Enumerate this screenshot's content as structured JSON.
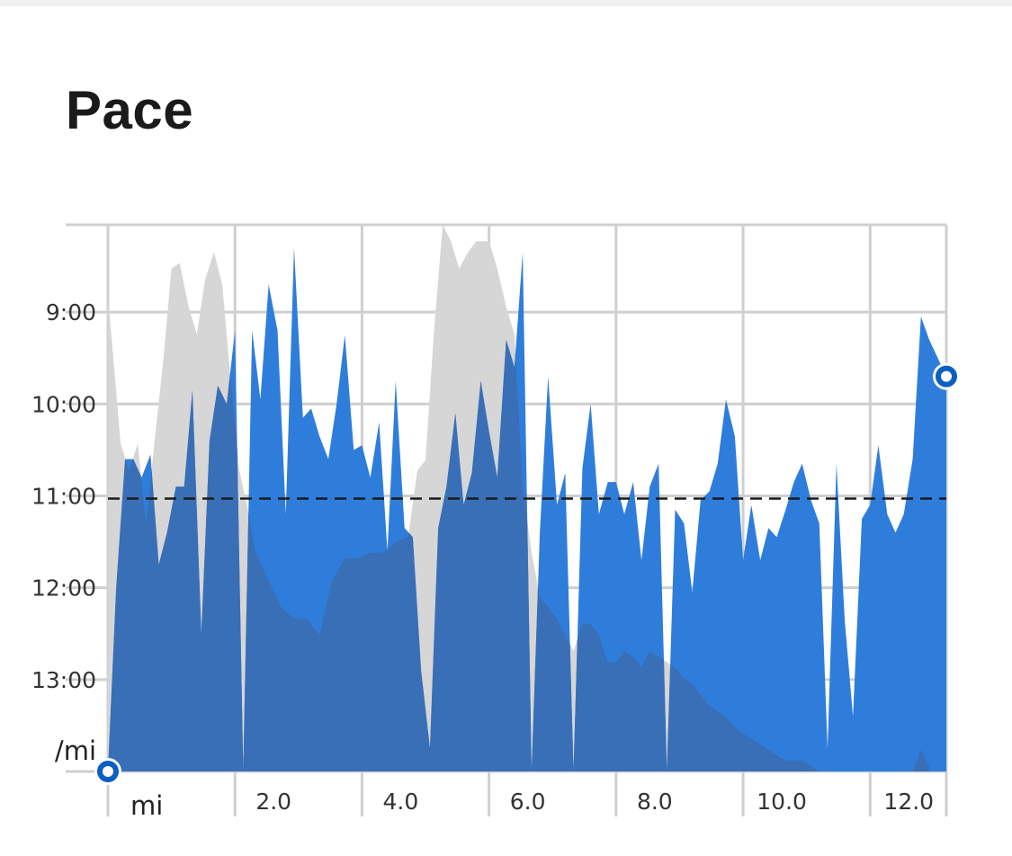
{
  "page": {
    "title": "Pace"
  },
  "colors": {
    "pace_fill": "#2f7ddb",
    "elevation_fill": "#d6d6d6",
    "overlap_tint": "#3a6fb5",
    "grid": "#cfcfcf",
    "average_line": "#1a1a1a",
    "marker_ring": "#0a5fc4"
  },
  "chart_data": {
    "type": "area",
    "title": "Pace",
    "xlabel": "mi",
    "ylabel": "/mi",
    "x_ticks": [
      2.0,
      4.0,
      6.0,
      8.0,
      10.0,
      12.0
    ],
    "x_tick_labels": [
      "2.0",
      "4.0",
      "6.0",
      "8.0",
      "10.0",
      "12.0"
    ],
    "y_ticks": [
      9,
      10,
      11,
      12,
      13
    ],
    "y_tick_labels": [
      "9:00",
      "10:00",
      "11:00",
      "12:00",
      "13:00"
    ],
    "y_axis_unit_label": "/mi",
    "x_axis_unit_label": "mi",
    "xlim": [
      0,
      13.2
    ],
    "ylim_minutes_per_mile": [
      8.05,
      14.0
    ],
    "y_inverted": true,
    "grid": true,
    "average_pace_minutes": 11.03,
    "series": [
      {
        "values_pace_minutes": [
          [
            0.0,
            14.0
          ],
          [
            0.13,
            12.0
          ],
          [
            0.27,
            10.6
          ],
          [
            0.4,
            10.6
          ],
          [
            0.53,
            10.8
          ],
          [
            0.67,
            10.55
          ],
          [
            0.8,
            11.75
          ],
          [
            0.93,
            11.4
          ],
          [
            1.07,
            10.9
          ],
          [
            1.2,
            10.9
          ],
          [
            1.33,
            9.85
          ],
          [
            1.47,
            12.5
          ],
          [
            1.6,
            10.4
          ],
          [
            1.73,
            9.8
          ],
          [
            1.87,
            10.0
          ],
          [
            2.0,
            9.2
          ],
          [
            2.13,
            14.0
          ],
          [
            2.27,
            9.2
          ],
          [
            2.4,
            9.95
          ],
          [
            2.53,
            8.7
          ],
          [
            2.67,
            9.2
          ],
          [
            2.8,
            11.2
          ],
          [
            2.93,
            8.3
          ],
          [
            3.07,
            10.15
          ],
          [
            3.2,
            10.05
          ],
          [
            3.33,
            10.35
          ],
          [
            3.47,
            10.6
          ],
          [
            3.6,
            10.0
          ],
          [
            3.73,
            9.25
          ],
          [
            3.87,
            10.5
          ],
          [
            4.0,
            10.45
          ],
          [
            4.13,
            10.8
          ],
          [
            4.27,
            10.2
          ],
          [
            4.4,
            11.6
          ],
          [
            4.53,
            9.75
          ],
          [
            4.67,
            11.35
          ],
          [
            4.8,
            11.45
          ],
          [
            4.93,
            12.9
          ],
          [
            5.07,
            13.75
          ],
          [
            5.2,
            11.35
          ],
          [
            5.33,
            10.9
          ],
          [
            5.47,
            10.1
          ],
          [
            5.6,
            11.1
          ],
          [
            5.73,
            10.75
          ],
          [
            5.87,
            9.75
          ],
          [
            6.0,
            10.3
          ],
          [
            6.13,
            10.8
          ],
          [
            6.27,
            9.3
          ],
          [
            6.4,
            9.6
          ],
          [
            6.53,
            8.35
          ],
          [
            6.67,
            14.0
          ],
          [
            6.8,
            11.4
          ],
          [
            6.93,
            9.7
          ],
          [
            7.07,
            11.1
          ],
          [
            7.2,
            10.75
          ],
          [
            7.33,
            14.0
          ],
          [
            7.47,
            10.7
          ],
          [
            7.6,
            10.0
          ],
          [
            7.73,
            11.2
          ],
          [
            7.87,
            10.85
          ],
          [
            8.0,
            10.85
          ],
          [
            8.13,
            11.2
          ],
          [
            8.27,
            10.85
          ],
          [
            8.4,
            11.7
          ],
          [
            8.53,
            10.9
          ],
          [
            8.67,
            10.65
          ],
          [
            8.8,
            14.0
          ],
          [
            8.93,
            11.15
          ],
          [
            9.07,
            11.3
          ],
          [
            9.2,
            12.05
          ],
          [
            9.33,
            11.05
          ],
          [
            9.47,
            10.95
          ],
          [
            9.6,
            10.65
          ],
          [
            9.73,
            9.95
          ],
          [
            9.87,
            10.35
          ],
          [
            10.0,
            11.7
          ],
          [
            10.13,
            11.1
          ],
          [
            10.27,
            11.7
          ],
          [
            10.4,
            11.35
          ],
          [
            10.53,
            11.45
          ],
          [
            10.67,
            11.15
          ],
          [
            10.8,
            10.85
          ],
          [
            10.93,
            10.65
          ],
          [
            11.07,
            11.05
          ],
          [
            11.2,
            11.3
          ],
          [
            11.33,
            13.75
          ],
          [
            11.47,
            10.65
          ],
          [
            11.6,
            12.35
          ],
          [
            11.73,
            13.4
          ],
          [
            11.87,
            11.25
          ],
          [
            12.0,
            11.1
          ],
          [
            12.13,
            10.45
          ],
          [
            12.27,
            11.2
          ],
          [
            12.4,
            11.4
          ],
          [
            12.53,
            11.2
          ],
          [
            12.67,
            10.6
          ],
          [
            12.8,
            9.05
          ],
          [
            12.93,
            9.3
          ]
        ]
      },
      {
        "values_relative_0_to_1": [
          [
            0.0,
            0.87
          ],
          [
            0.2,
            0.6
          ],
          [
            0.33,
            0.55
          ],
          [
            0.47,
            0.6
          ],
          [
            0.6,
            0.45
          ],
          [
            0.73,
            0.6
          ],
          [
            0.87,
            0.75
          ],
          [
            1.0,
            0.92
          ],
          [
            1.13,
            0.93
          ],
          [
            1.27,
            0.85
          ],
          [
            1.4,
            0.8
          ],
          [
            1.53,
            0.9
          ],
          [
            1.67,
            0.95
          ],
          [
            1.8,
            0.89
          ],
          [
            1.93,
            0.72
          ],
          [
            2.07,
            0.55
          ],
          [
            2.2,
            0.48
          ],
          [
            2.33,
            0.4
          ],
          [
            2.53,
            0.35
          ],
          [
            2.73,
            0.3
          ],
          [
            2.93,
            0.28
          ],
          [
            3.13,
            0.28
          ],
          [
            3.33,
            0.25
          ],
          [
            3.53,
            0.35
          ],
          [
            3.73,
            0.39
          ],
          [
            3.93,
            0.39
          ],
          [
            4.13,
            0.4
          ],
          [
            4.33,
            0.4
          ],
          [
            4.53,
            0.42
          ],
          [
            4.73,
            0.43
          ],
          [
            4.87,
            0.55
          ],
          [
            5.0,
            0.57
          ],
          [
            5.13,
            0.8
          ],
          [
            5.27,
            1.0
          ],
          [
            5.4,
            0.97
          ],
          [
            5.53,
            0.92
          ],
          [
            5.67,
            0.95
          ],
          [
            5.8,
            0.97
          ],
          [
            5.93,
            0.97
          ],
          [
            6.0,
            0.97
          ],
          [
            6.13,
            0.92
          ],
          [
            6.27,
            0.85
          ],
          [
            6.4,
            0.8
          ],
          [
            6.53,
            0.52
          ],
          [
            6.67,
            0.4
          ],
          [
            6.8,
            0.32
          ],
          [
            6.93,
            0.3
          ],
          [
            7.07,
            0.28
          ],
          [
            7.2,
            0.25
          ],
          [
            7.33,
            0.22
          ],
          [
            7.47,
            0.27
          ],
          [
            7.6,
            0.27
          ],
          [
            7.73,
            0.25
          ],
          [
            7.87,
            0.2
          ],
          [
            8.0,
            0.2
          ],
          [
            8.13,
            0.22
          ],
          [
            8.27,
            0.21
          ],
          [
            8.4,
            0.19
          ],
          [
            8.53,
            0.22
          ],
          [
            8.67,
            0.21
          ],
          [
            8.8,
            0.2
          ],
          [
            8.93,
            0.19
          ],
          [
            9.07,
            0.17
          ],
          [
            9.2,
            0.16
          ],
          [
            9.33,
            0.14
          ],
          [
            9.47,
            0.12
          ],
          [
            9.6,
            0.11
          ],
          [
            9.73,
            0.1
          ],
          [
            9.87,
            0.08
          ],
          [
            10.0,
            0.07
          ],
          [
            10.13,
            0.06
          ],
          [
            10.27,
            0.05
          ],
          [
            10.4,
            0.04
          ],
          [
            10.53,
            0.03
          ],
          [
            10.67,
            0.02
          ],
          [
            10.8,
            0.02
          ],
          [
            10.93,
            0.02
          ],
          [
            11.07,
            0.01
          ],
          [
            11.2,
            0.0
          ],
          [
            11.33,
            0.0
          ],
          [
            11.47,
            0.0
          ],
          [
            11.6,
            0.0
          ],
          [
            11.73,
            0.0
          ],
          [
            11.87,
            0.0
          ],
          [
            12.0,
            0.0
          ],
          [
            12.13,
            0.0
          ],
          [
            12.27,
            0.0
          ],
          [
            12.4,
            0.0
          ],
          [
            12.53,
            0.0
          ],
          [
            12.67,
            0.0
          ],
          [
            12.8,
            0.04
          ],
          [
            12.93,
            0.01
          ]
        ]
      }
    ],
    "markers": [
      {
        "x": 0.0,
        "y_pace_minutes": 14.0
      },
      {
        "x": 13.2,
        "y_pace_minutes": 9.7
      }
    ]
  }
}
